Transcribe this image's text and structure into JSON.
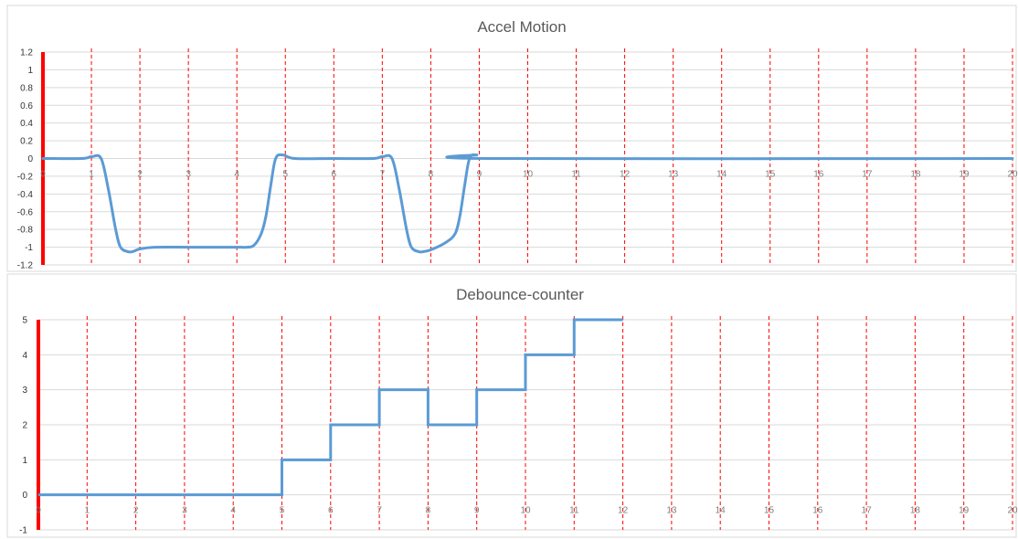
{
  "colors": {
    "series": "#5b9bd5",
    "marker": "#ff0000",
    "gridline": "#d9d9d9",
    "axis_text": "#333333",
    "title_text": "#595959"
  },
  "chart_data": [
    {
      "type": "line",
      "title": "Accel Motion",
      "xlabel": "",
      "ylabel": "",
      "xlim": [
        0,
        20
      ],
      "ylim": [
        -1.2,
        1.2
      ],
      "y_ticks": [
        "-1.2",
        "-1",
        "-0.8",
        "-0.6",
        "-0.4",
        "-0.2",
        "0",
        "0.2",
        "0.4",
        "0.6",
        "0.8",
        "1",
        "1.2"
      ],
      "x_ticks": [
        "0",
        "1",
        "2",
        "3",
        "4",
        "5",
        "6",
        "7",
        "8",
        "9",
        "10",
        "11",
        "12",
        "13",
        "14",
        "15",
        "16",
        "17",
        "18",
        "19",
        "20"
      ],
      "vertical_markers": [
        1,
        2,
        3,
        4,
        5,
        6,
        7,
        8,
        9,
        10,
        11,
        12,
        13,
        14,
        15,
        16,
        17,
        18,
        19,
        20
      ],
      "grid": true,
      "series": [
        {
          "x": [
            0,
            0.8,
            1.0,
            1.2,
            1.35,
            1.5,
            1.6,
            1.75,
            1.85,
            2.0,
            2.3,
            3.0,
            3.5,
            4.0,
            4.2,
            4.35,
            4.5,
            4.6,
            4.7,
            4.8,
            4.95,
            5.2,
            6.0,
            6.8,
            7.0,
            7.2,
            7.35,
            7.5,
            7.6,
            7.75,
            7.85,
            8.0,
            8.3,
            8.5,
            8.6,
            8.7,
            8.8,
            8.95,
            9.2,
            20
          ],
          "y": [
            0,
            0,
            0.02,
            0.0,
            -0.35,
            -0.8,
            -1.0,
            -1.05,
            -1.05,
            -1.02,
            -1.0,
            -1.0,
            -1.0,
            -1.0,
            -1.0,
            -0.98,
            -0.85,
            -0.65,
            -0.3,
            0.0,
            0.04,
            0.0,
            0,
            0,
            0.02,
            0.0,
            -0.35,
            -0.8,
            -1.0,
            -1.05,
            -1.05,
            -1.03,
            -0.95,
            -0.85,
            -0.65,
            -0.3,
            0.0,
            0.04,
            0.0,
            0
          ]
        }
      ]
    },
    {
      "type": "line",
      "title": "Debounce-counter",
      "xlabel": "",
      "ylabel": "",
      "xlim": [
        0,
        20
      ],
      "ylim": [
        -1,
        5
      ],
      "y_ticks": [
        "-1",
        "0",
        "1",
        "2",
        "3",
        "4",
        "5"
      ],
      "x_ticks": [
        "0",
        "1",
        "2",
        "3",
        "4",
        "5",
        "6",
        "7",
        "8",
        "9",
        "10",
        "11",
        "12",
        "13",
        "14",
        "15",
        "16",
        "17",
        "18",
        "19",
        "20"
      ],
      "vertical_markers": [
        1,
        2,
        3,
        4,
        5,
        6,
        7,
        8,
        9,
        10,
        11,
        12,
        13,
        14,
        15,
        16,
        17,
        18,
        19,
        20
      ],
      "grid": true,
      "series": [
        {
          "step": true,
          "x": [
            0,
            5,
            5,
            6,
            6,
            7,
            7,
            8,
            8,
            9,
            9,
            10,
            10,
            11,
            11,
            12
          ],
          "y": [
            0,
            0,
            1,
            1,
            2,
            2,
            3,
            3,
            2,
            2,
            3,
            3,
            4,
            4,
            5,
            5
          ]
        }
      ]
    }
  ]
}
